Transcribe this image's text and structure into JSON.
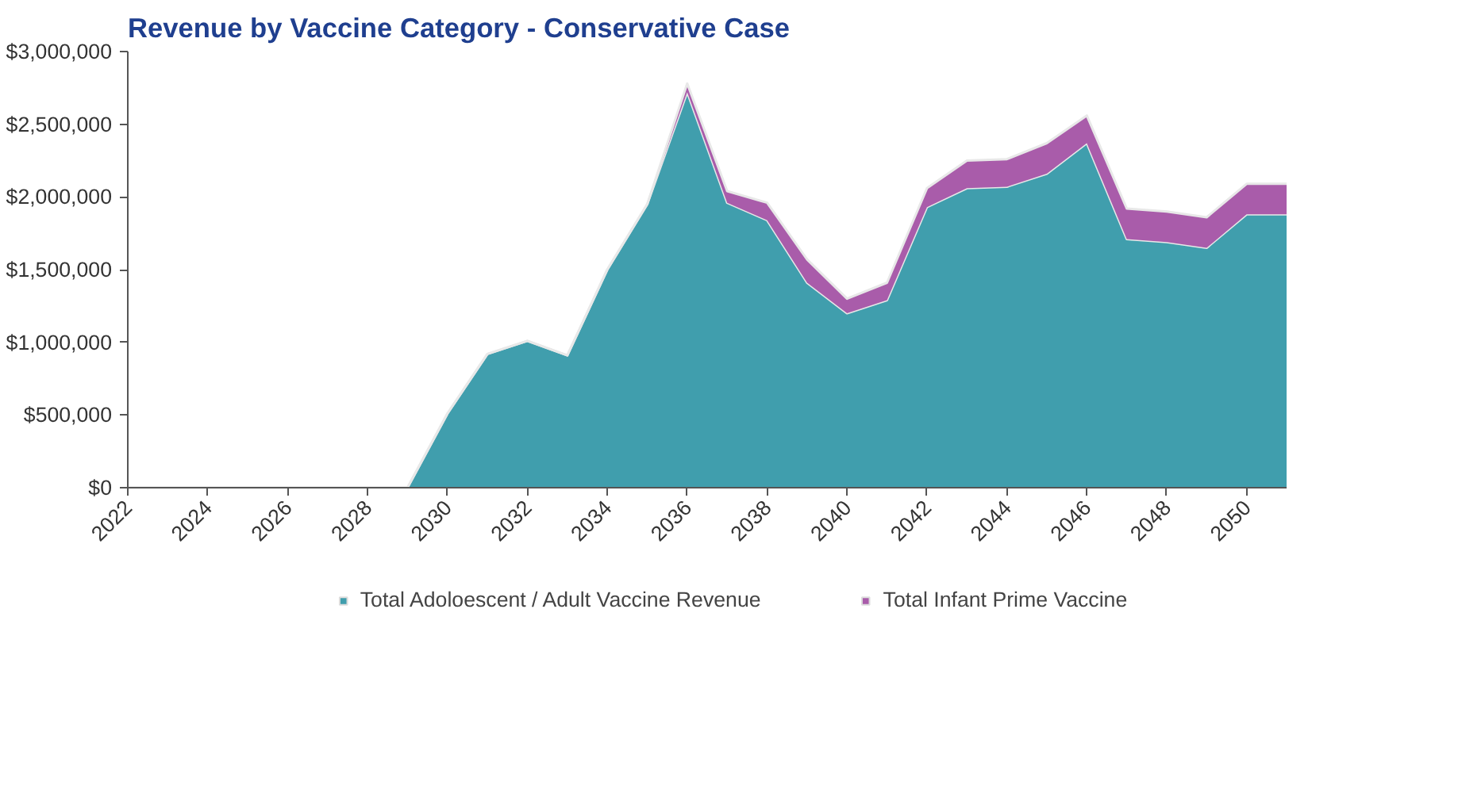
{
  "chart_data": {
    "type": "area",
    "stacked": true,
    "title": "Revenue by Vaccine Category - Conservative  Case",
    "x": [
      2022,
      2023,
      2024,
      2025,
      2026,
      2027,
      2028,
      2029,
      2030,
      2031,
      2032,
      2033,
      2034,
      2035,
      2036,
      2037,
      2038,
      2039,
      2040,
      2041,
      2042,
      2043,
      2044,
      2045,
      2046,
      2047,
      2048,
      2049,
      2050,
      2051
    ],
    "series": [
      {
        "name": "Total Adoloescent / Adult Vaccine Revenue",
        "color": "#409ead",
        "values": [
          0,
          0,
          0,
          0,
          0,
          0,
          0,
          0,
          510000,
          920000,
          1010000,
          910000,
          1500000,
          1950000,
          2720000,
          1960000,
          1840000,
          1410000,
          1200000,
          1290000,
          1930000,
          2060000,
          2070000,
          2160000,
          2370000,
          1710000,
          1690000,
          1650000,
          1880000,
          1880000
        ]
      },
      {
        "name": "Total Infant Prime Vaccine",
        "color": "#a95caa",
        "values": [
          0,
          0,
          0,
          0,
          0,
          0,
          0,
          0,
          0,
          0,
          0,
          0,
          0,
          0,
          60000,
          80000,
          120000,
          160000,
          100000,
          120000,
          130000,
          190000,
          190000,
          210000,
          190000,
          210000,
          210000,
          210000,
          210000,
          210000
        ]
      }
    ],
    "xlim": [
      2022,
      2051
    ],
    "xticks": [
      2022,
      2024,
      2026,
      2028,
      2030,
      2032,
      2034,
      2036,
      2038,
      2040,
      2042,
      2044,
      2046,
      2048,
      2050
    ],
    "ylim": [
      0,
      3000000
    ],
    "yticks": [
      {
        "value": 0,
        "label": "$0"
      },
      {
        "value": 500000,
        "label": "$500,000"
      },
      {
        "value": 1000000,
        "label": "$1,000,000"
      },
      {
        "value": 1500000,
        "label": "$1,500,000"
      },
      {
        "value": 2000000,
        "label": "$2,000,000"
      },
      {
        "value": 2500000,
        "label": "$2,500,000"
      },
      {
        "value": 3000000,
        "label": "$3,000,000"
      }
    ],
    "grid": false,
    "legend": "bottom"
  }
}
